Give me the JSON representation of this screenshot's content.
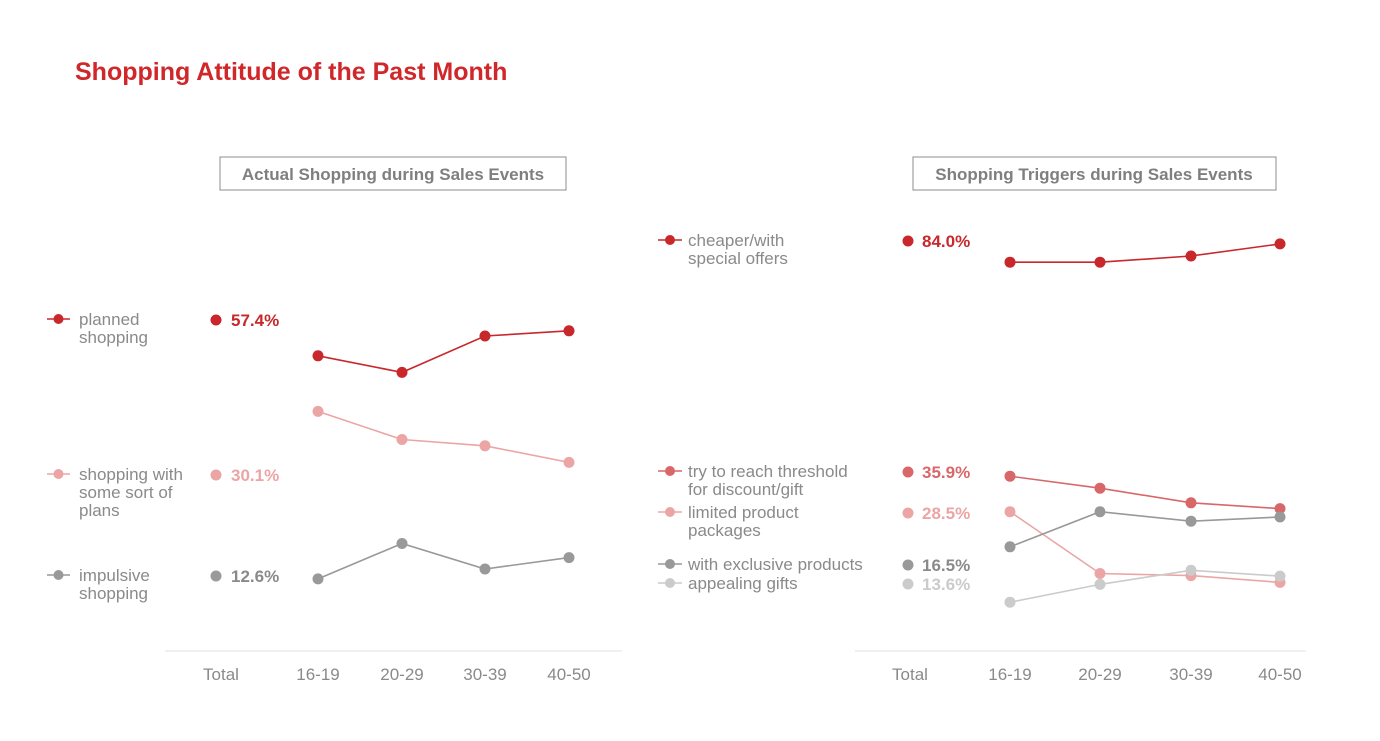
{
  "page": {
    "title": "Shopping Attitude of the Past Month"
  },
  "colors": {
    "red": "#c8282b",
    "mid_red": "#d9676a",
    "pink": "#eca5a5",
    "gray": "#999999",
    "light_gray": "#cbcbcb",
    "text": "#8a8a8a",
    "axis": "#e2e2e2"
  },
  "chart_data": [
    {
      "type": "line",
      "title": "Actual Shopping during Sales Events",
      "categories": [
        "Total",
        "16-19",
        "20-29",
        "30-39",
        "40-50"
      ],
      "series": [
        {
          "name": "planned shopping",
          "label_lines": [
            "planned",
            "shopping"
          ],
          "total_label": "57.4%",
          "color": "#c8282b",
          "values": [
            57.4,
            53.5,
            50.3,
            57.3,
            58.3
          ]
        },
        {
          "name": "shopping with some sort of plans",
          "label_lines": [
            "shopping with",
            "some sort of",
            "plans"
          ],
          "total_label": "30.1%",
          "color": "#eca5a5",
          "values": [
            30.1,
            42.8,
            37.4,
            36.2,
            33.0
          ]
        },
        {
          "name": "impulsive shopping",
          "label_lines": [
            "impulsive",
            "shopping"
          ],
          "total_label": "12.6%",
          "color": "#999999",
          "values": [
            12.6,
            10.6,
            17.4,
            12.5,
            14.7
          ]
        }
      ],
      "ylim": [
        5,
        65
      ],
      "grid": false,
      "legend": "left"
    },
    {
      "type": "line",
      "title": "Shopping Triggers during Sales Events",
      "categories": [
        "Total",
        "16-19",
        "20-29",
        "30-39",
        "40-50"
      ],
      "series": [
        {
          "name": "cheaper/with special offers",
          "label_lines": [
            "cheaper/with",
            "special offers"
          ],
          "total_label": "84.0%",
          "color": "#c8282b",
          "values": [
            84.0,
            80.5,
            80.5,
            81.7,
            84.0
          ]
        },
        {
          "name": "try to reach threshold for discount/gift",
          "label_lines": [
            "try to reach threshold",
            "for discount/gift"
          ],
          "total_label": "35.9%",
          "color": "#d9676a",
          "values": [
            35.9,
            39.6,
            37.3,
            34.5,
            33.4
          ]
        },
        {
          "name": "limited product packages",
          "label_lines": [
            "limited product",
            "packages"
          ],
          "total_label": "28.5%",
          "color": "#eca5a5",
          "values": [
            28.5,
            32.8,
            21.0,
            20.6,
            19.3
          ]
        },
        {
          "name": "with exclusive products",
          "label_lines": [
            "with exclusive products"
          ],
          "total_label": "16.5%",
          "color": "#999999",
          "values": [
            16.5,
            26.1,
            32.8,
            31.0,
            31.8
          ]
        },
        {
          "name": "appealing gifts",
          "label_lines": [
            "appealing gifts"
          ],
          "total_label": "13.6%",
          "color": "#cbcbcb",
          "values": [
            13.6,
            15.5,
            18.9,
            21.6,
            20.5
          ]
        }
      ],
      "ylim": [
        10,
        88
      ],
      "grid": false,
      "legend": "left"
    }
  ]
}
